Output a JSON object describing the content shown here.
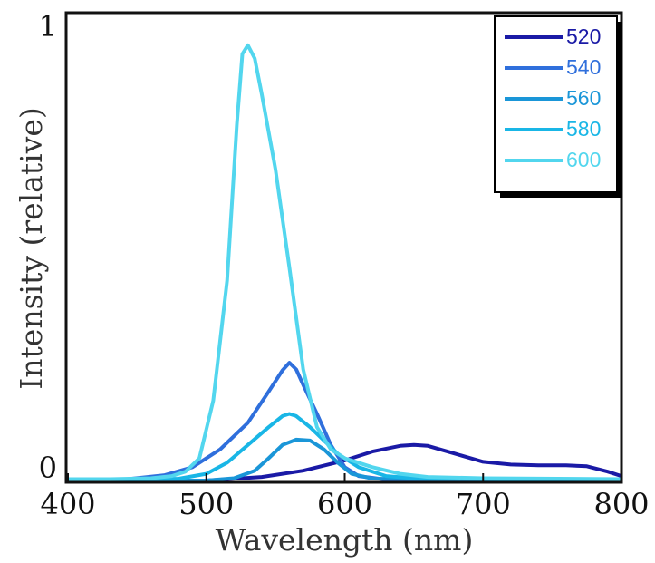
{
  "chart_data": {
    "type": "line",
    "xlabel": "Wavelength (nm)",
    "ylabel": "Intensity (relative)",
    "xlim": [
      400,
      800
    ],
    "ylim": [
      0,
      1
    ],
    "x_ticks": [
      400,
      500,
      600,
      700,
      800
    ],
    "y_tick_labels": [
      {
        "value": 0,
        "label": "0"
      },
      {
        "value": 1,
        "label": "1"
      }
    ],
    "grid": false,
    "legend": "top-right",
    "series": [
      {
        "name": "520",
        "color": "#1a1aa6",
        "points": [
          [
            400,
            0
          ],
          [
            500,
            0
          ],
          [
            540,
            0.008
          ],
          [
            570,
            0.022
          ],
          [
            600,
            0.045
          ],
          [
            620,
            0.065
          ],
          [
            640,
            0.078
          ],
          [
            650,
            0.08
          ],
          [
            660,
            0.078
          ],
          [
            680,
            0.06
          ],
          [
            700,
            0.042
          ],
          [
            720,
            0.036
          ],
          [
            740,
            0.034
          ],
          [
            760,
            0.034
          ],
          [
            775,
            0.032
          ],
          [
            790,
            0.02
          ],
          [
            800,
            0.01
          ]
        ]
      },
      {
        "name": "540",
        "color": "#2f6fdc",
        "points": [
          [
            400,
            0
          ],
          [
            440,
            0.002
          ],
          [
            470,
            0.012
          ],
          [
            490,
            0.03
          ],
          [
            510,
            0.07
          ],
          [
            530,
            0.13
          ],
          [
            545,
            0.2
          ],
          [
            555,
            0.248
          ],
          [
            560,
            0.265
          ],
          [
            565,
            0.25
          ],
          [
            570,
            0.215
          ],
          [
            580,
            0.15
          ],
          [
            590,
            0.08
          ],
          [
            600,
            0.03
          ],
          [
            610,
            0.01
          ],
          [
            630,
            0.002
          ],
          [
            800,
            0
          ]
        ]
      },
      {
        "name": "560",
        "color": "#1a96d8",
        "points": [
          [
            400,
            0
          ],
          [
            500,
            0
          ],
          [
            520,
            0.005
          ],
          [
            535,
            0.022
          ],
          [
            545,
            0.05
          ],
          [
            555,
            0.08
          ],
          [
            565,
            0.092
          ],
          [
            575,
            0.09
          ],
          [
            585,
            0.07
          ],
          [
            595,
            0.04
          ],
          [
            605,
            0.015
          ],
          [
            620,
            0.004
          ],
          [
            800,
            0
          ]
        ]
      },
      {
        "name": "580",
        "color": "#19b6e6",
        "points": [
          [
            400,
            0
          ],
          [
            480,
            0.004
          ],
          [
            500,
            0.015
          ],
          [
            515,
            0.04
          ],
          [
            530,
            0.08
          ],
          [
            545,
            0.12
          ],
          [
            555,
            0.145
          ],
          [
            560,
            0.15
          ],
          [
            565,
            0.145
          ],
          [
            575,
            0.12
          ],
          [
            585,
            0.09
          ],
          [
            595,
            0.06
          ],
          [
            610,
            0.03
          ],
          [
            630,
            0.01
          ],
          [
            650,
            0.005
          ],
          [
            800,
            0
          ]
        ]
      },
      {
        "name": "600",
        "color": "#52d6ee",
        "points": [
          [
            400,
            0.003
          ],
          [
            430,
            0.003
          ],
          [
            460,
            0.005
          ],
          [
            475,
            0.01
          ],
          [
            485,
            0.02
          ],
          [
            495,
            0.05
          ],
          [
            505,
            0.18
          ],
          [
            515,
            0.45
          ],
          [
            522,
            0.8
          ],
          [
            526,
            0.96
          ],
          [
            530,
            0.98
          ],
          [
            535,
            0.95
          ],
          [
            540,
            0.87
          ],
          [
            550,
            0.7
          ],
          [
            560,
            0.48
          ],
          [
            570,
            0.25
          ],
          [
            580,
            0.12
          ],
          [
            590,
            0.07
          ],
          [
            600,
            0.05
          ],
          [
            620,
            0.03
          ],
          [
            640,
            0.015
          ],
          [
            660,
            0.008
          ],
          [
            700,
            0.005
          ],
          [
            800,
            0.003
          ]
        ]
      }
    ]
  }
}
